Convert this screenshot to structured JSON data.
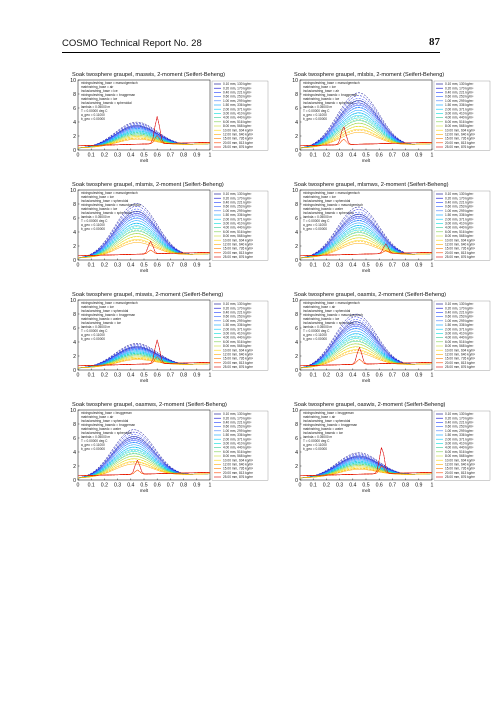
{
  "page_header": {
    "report_title": "COSMO Technical Report No. 28",
    "page_number": "87"
  },
  "shared": {
    "xlabel": "melt",
    "xticks": [
      "0",
      "0.1",
      "0.2",
      "0.3",
      "0.4",
      "0.5",
      "0.6",
      "0.7",
      "0.8",
      "0.9",
      "1"
    ],
    "yticks": [
      "0",
      "2",
      "4",
      "6",
      "8",
      "10"
    ],
    "legend_labels": [
      "0.10 mm, 130 kg/m³",
      "0.20 mm, 170 kg/m³",
      "0.40 mm, 221 kg/m³",
      "0.60 mm, 253 kg/m³",
      "1.00 mm, 299 kg/m³",
      "1.50 mm, 336 kg/m³",
      "2.00 mm, 371 kg/m³",
      "3.00 mm, 410 kg/m³",
      "4.00 mm, 440 kg/m³",
      "6.00 mm, 516 kg/m³",
      "8.00 mm, 568 kg/m³",
      "10.00 mm, 604 kg/m³",
      "12.00 mm, 640 kg/m³",
      "15.00 mm, 726 kg/m³",
      "20.00 mm, 813 kg/m³",
      "25.00 mm, 876 kg/m³"
    ],
    "series_colors": [
      "#00008b",
      "#0000cd",
      "#1e3cff",
      "#3264ff",
      "#4682ff",
      "#00a0ff",
      "#00c8ff",
      "#00dcdc",
      "#32cd96",
      "#7cd250",
      "#c8dc32",
      "#ffd700",
      "#ffaa00",
      "#ff7f00",
      "#ff4500",
      "#dc0000"
    ]
  },
  "panels": [
    {
      "title": "Soak twosphere graupel, maswis, 2-moment (Seifert-Beheng)",
      "info": [
        "mixingrulestring_base = masvolgemisch",
        "matrixstring_base = air",
        "inclusionstring_base = ice",
        "mixingrulestring_basedc = bruggeman",
        "matrixstring_basedc = ice",
        "inclusionstring_basedc = spheroidal",
        "lambda = 0.05000 m",
        "T = 0.00000 deg C",
        "a_geo = 0.11000",
        "b_geo = 0.00000"
      ],
      "chart_data": {
        "type": "line",
        "xlim": [
          0,
          1
        ],
        "ylim": [
          0,
          10
        ],
        "peak_max": 3.2,
        "peak_x": 0.45,
        "spike_x": 0.6,
        "spike_y": 4.5
      }
    },
    {
      "title": "Soak twosphere graupel, mlsbis, 2-moment (Seifert-Beheng)",
      "info": [
        "mixingrulestring_base = masvolgemisch",
        "matrixstring_base = ice",
        "inclusionstring_base = air",
        "mixingrulestring_basedc = bruggeman",
        "matrixstring_basedc = ice",
        "inclusionstring_basedc = spheroidal",
        "lambda = 0.05000 m",
        "T = 0.00000 deg C",
        "a_geo = 0.11000",
        "b_geo = 0.00000"
      ],
      "chart_data": {
        "type": "line",
        "xlim": [
          0,
          1
        ],
        "ylim": [
          0,
          10
        ],
        "peak_max": 7.4,
        "peak_x": 0.45,
        "spike_x": 0.33,
        "spike_y": 3.2
      }
    },
    {
      "title": "Soak twosphere graupel, mlsmis, 2-moment (Seifert-Beheng)",
      "info": [
        "mixingrulestring_base = masvolgemisch",
        "matrixstring_base = ice",
        "inclusionstring_base = spheroidal",
        "mixingrulestring_basedc = masvolgemisch",
        "matrixstring_basedc = ice",
        "inclusionstring_basedc = spheroidal",
        "lambda = 0.05000 m",
        "T = 0.00000 deg C",
        "a_geo = 0.11000",
        "b_geo = 0.00000"
      ],
      "chart_data": {
        "type": "line",
        "xlim": [
          0,
          1
        ],
        "ylim": [
          0,
          10
        ],
        "peak_max": 7.3,
        "peak_x": 0.45,
        "spike_x": 0.55,
        "spike_y": 2.4
      }
    },
    {
      "title": "Soak twosphere graupel, mlsmws, 2-moment (Seifert-Beheng)",
      "info": [
        "mixingrulestring_base = masvolgemisch",
        "matrixstring_base = ice",
        "inclusionstring_base = spheroidal",
        "mixingrulestring_basedc = masvolgemisch",
        "matrixstring_basedc = water",
        "inclusionstring_basedc = spheroidal",
        "lambda = 0.05000 m",
        "T = 0.00000 deg C",
        "a_geo = 0.11000",
        "b_geo = 0.00000"
      ],
      "chart_data": {
        "type": "line",
        "xlim": [
          0,
          1
        ],
        "ylim": [
          0,
          10
        ],
        "peak_max": 6.8,
        "peak_x": 0.45,
        "spike_x": 0.65,
        "spike_y": 2.0
      }
    },
    {
      "title": "Soak twosphere graupel, miswis, 2-moment (Seifert-Beheng)",
      "info": [
        "mixingrulestring_base = masvolgemisch",
        "matrixstring_base = ice",
        "inclusionstring_base = spheroidal",
        "mixingrulestring_basedc = bruggeman",
        "matrixstring_basedc = water",
        "inclusionstring_basedc = ice",
        "lambda = 0.05000 m",
        "T = 0.00000 deg C",
        "a_geo = 0.11000",
        "b_geo = 0.00000"
      ],
      "chart_data": {
        "type": "line",
        "xlim": [
          0,
          1
        ],
        "ylim": [
          0,
          10
        ],
        "peak_max": 3.0,
        "peak_x": 0.45,
        "spike_x": 0.6,
        "spike_y": 4.0
      }
    },
    {
      "title": "Soak twosphere graupel, oasmis, 2-moment (Seifert-Beheng)",
      "info": [
        "mixingrulestring_base = masvolgemisch",
        "matrixstring_base = air",
        "inclusionstring_base = spheroidal",
        "mixingrulestring_basedc = masvolgemisch",
        "matrixstring_basedc = ice",
        "inclusionstring_basedc = spheroidal",
        "lambda = 0.05000 m",
        "T = 0.00000 deg C",
        "a_geo = 0.11000",
        "b_geo = 0.00000"
      ],
      "chart_data": {
        "type": "line",
        "xlim": [
          0,
          1
        ],
        "ylim": [
          0,
          10
        ],
        "peak_max": 7.2,
        "peak_x": 0.42,
        "spike_x": 0.45,
        "spike_y": 3.0
      }
    },
    {
      "title": "Soak twosphere graupel, oasmws, 2-moment (Seifert-Beheng)",
      "info": [
        "mixingrulestring_base = bruggeman",
        "matrixstring_base = air",
        "inclusionstring_base = spheroidal",
        "mixingrulestring_basedc = bruggeman",
        "matrixstring_basedc = water",
        "inclusionstring_basedc = spheroidal",
        "lambda = 0.05000 m",
        "T = 0.00000 deg C",
        "a_geo = 0.11000",
        "b_geo = 0.00000"
      ],
      "chart_data": {
        "type": "line",
        "xlim": [
          0,
          1
        ],
        "ylim": [
          0,
          10
        ],
        "peak_max": 6.4,
        "peak_x": 0.42,
        "spike_x": 0.45,
        "spike_y": 2.6
      }
    },
    {
      "title": "Soak twosphere graupel, oaswis, 2-moment (Seifert-Beheng)",
      "info": [
        "mixingrulestring_base = bruggeman",
        "matrixstring_base = air",
        "inclusionstring_base = spheroidal",
        "mixingrulestring_basedc = bruggeman",
        "matrixstring_basedc = water",
        "inclusionstring_basedc = ice",
        "lambda = 0.05000 m",
        "T = 0.00000 deg C",
        "a_geo = 0.11000",
        "b_geo = 0.00000"
      ],
      "chart_data": {
        "type": "line",
        "xlim": [
          0,
          1
        ],
        "ylim": [
          0,
          10
        ],
        "peak_max": 3.1,
        "peak_x": 0.45,
        "spike_x": 0.62,
        "spike_y": 4.4
      }
    }
  ]
}
